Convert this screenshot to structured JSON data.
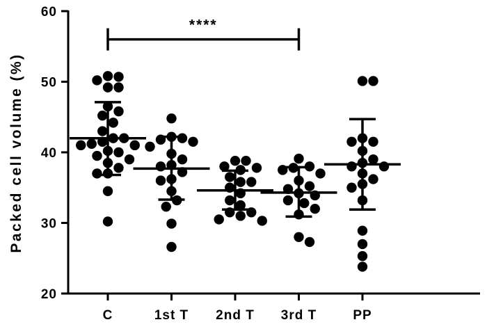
{
  "chart_data": {
    "type": "scatter",
    "title": "",
    "xlabel": "",
    "ylabel": "Packed cell volume (%)",
    "ylim": [
      20,
      60
    ],
    "yticks": [
      20,
      30,
      40,
      50,
      60
    ],
    "grid": false,
    "categories": [
      "C",
      "1st T",
      "2nd T",
      "3rd T",
      "PP"
    ],
    "groups": [
      {
        "category": "C",
        "points": [
          50.8,
          50.7,
          50.2,
          49.2,
          49.2,
          46.5,
          45.8,
          45.2,
          44.2,
          43.0,
          42.0,
          42.0,
          41.5,
          41.2,
          41.0,
          41.0,
          40.2,
          40.0,
          39.5,
          39.0,
          38.5,
          37.8,
          37.0,
          37.0,
          34.5,
          30.2
        ],
        "mean": 42.0,
        "sd_low": 36.8,
        "sd_high": 47.1
      },
      {
        "category": "1st T",
        "points": [
          44.8,
          42.2,
          42.0,
          41.8,
          41.5,
          40.8,
          39.8,
          39.0,
          38.2,
          38.0,
          37.2,
          36.2,
          36.0,
          34.5,
          33.2,
          32.3,
          29.9,
          26.6
        ],
        "mean": 37.7,
        "sd_low": 33.3,
        "sd_high": 42.2
      },
      {
        "category": "2nd T",
        "points": [
          38.8,
          38.8,
          38.0,
          37.8,
          37.5,
          36.5,
          35.8,
          35.8,
          35.0,
          34.2,
          33.2,
          32.5,
          31.5,
          31.5,
          31.0,
          30.5,
          30.3
        ],
        "mean": 34.6,
        "sd_low": 31.9,
        "sd_high": 37.4
      },
      {
        "category": "3rd T",
        "points": [
          39.1,
          38.0,
          37.8,
          37.5,
          37.0,
          36.0,
          35.2,
          34.8,
          34.2,
          33.9,
          33.2,
          32.8,
          32.0,
          31.2,
          28.0,
          27.3
        ],
        "mean": 34.3,
        "sd_low": 30.9,
        "sd_high": 37.9
      },
      {
        "category": "PP",
        "points": [
          50.1,
          50.1,
          42.0,
          41.5,
          41.5,
          40.2,
          39.0,
          38.5,
          38.0,
          38.0,
          37.0,
          36.2,
          35.5,
          35.0,
          33.2,
          28.9,
          27.0,
          25.3,
          23.8
        ],
        "mean": 38.3,
        "sd_low": 31.9,
        "sd_high": 44.7
      }
    ],
    "significance": {
      "from": "C",
      "to": "3rd T",
      "y": 56,
      "label": "****"
    }
  }
}
